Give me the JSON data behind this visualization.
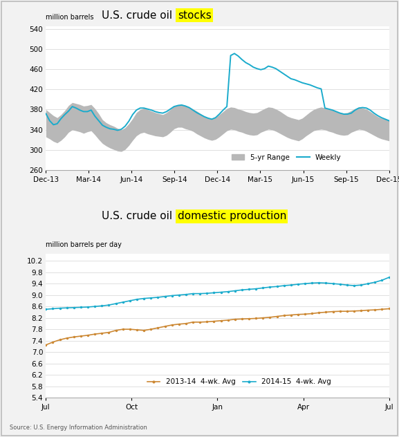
{
  "chart1": {
    "title_prefix": "U.S. crude oil ",
    "title_highlight": "stocks",
    "ylabel": "million barrels",
    "ylim": [
      260,
      545
    ],
    "yticks": [
      260,
      300,
      340,
      380,
      420,
      460,
      500,
      540
    ],
    "xtick_labels": [
      "Dec-13",
      "Mar-14",
      "Jun-14",
      "Sep-14",
      "Dec-14",
      "Mar-15",
      "Jun-15",
      "Sep-15",
      "Dec-15"
    ],
    "band_color": "#b8b8b8",
    "line_color": "#1aabcc",
    "legend_band": "5-yr Range",
    "legend_line": "Weekly",
    "band_upper": [
      380,
      374,
      368,
      364,
      370,
      378,
      388,
      394,
      392,
      390,
      387,
      388,
      390,
      382,
      372,
      360,
      354,
      350,
      347,
      343,
      340,
      344,
      352,
      362,
      374,
      380,
      383,
      380,
      377,
      374,
      372,
      370,
      374,
      380,
      387,
      390,
      390,
      388,
      385,
      381,
      377,
      372,
      367,
      364,
      362,
      364,
      370,
      376,
      382,
      385,
      384,
      381,
      379,
      376,
      374,
      373,
      374,
      378,
      382,
      385,
      384,
      381,
      377,
      372,
      367,
      364,
      362,
      360,
      363,
      369,
      375,
      380,
      383,
      385,
      383,
      381,
      379,
      376,
      374,
      373,
      374,
      378,
      382,
      385,
      383,
      381,
      376,
      371,
      366,
      363,
      361,
      359
    ],
    "band_lower": [
      326,
      322,
      317,
      314,
      319,
      326,
      335,
      340,
      338,
      336,
      333,
      336,
      338,
      330,
      321,
      313,
      308,
      304,
      301,
      298,
      297,
      301,
      309,
      319,
      328,
      333,
      335,
      332,
      330,
      328,
      327,
      326,
      329,
      335,
      342,
      345,
      345,
      342,
      340,
      337,
      332,
      328,
      324,
      321,
      319,
      321,
      326,
      332,
      338,
      341,
      340,
      337,
      335,
      332,
      330,
      329,
      330,
      335,
      338,
      341,
      340,
      337,
      333,
      329,
      325,
      322,
      320,
      318,
      322,
      328,
      333,
      338,
      340,
      341,
      340,
      337,
      335,
      332,
      330,
      329,
      330,
      335,
      338,
      341,
      340,
      337,
      333,
      329,
      325,
      322,
      320,
      318
    ],
    "weekly": [
      372,
      358,
      350,
      352,
      362,
      370,
      377,
      386,
      383,
      379,
      376,
      376,
      379,
      367,
      358,
      349,
      345,
      342,
      341,
      339,
      341,
      347,
      357,
      370,
      379,
      383,
      383,
      381,
      379,
      376,
      374,
      373,
      376,
      381,
      386,
      388,
      389,
      387,
      384,
      379,
      374,
      370,
      366,
      363,
      361,
      364,
      371,
      379,
      386,
      487,
      491,
      486,
      479,
      473,
      469,
      464,
      461,
      459,
      461,
      466,
      464,
      461,
      456,
      451,
      446,
      441,
      439,
      436,
      433,
      431,
      429,
      426,
      423,
      421,
      383,
      381,
      379,
      376,
      373,
      371,
      371,
      373,
      379,
      383,
      384,
      383,
      379,
      373,
      368,
      364,
      361,
      358
    ]
  },
  "chart2": {
    "title_prefix": "U.S. crude oil ",
    "title_highlight": "domestic production",
    "ylabel": "million barrels per day",
    "ylim": [
      5.4,
      10.45
    ],
    "yticks": [
      5.4,
      5.8,
      6.2,
      6.6,
      7.0,
      7.4,
      7.8,
      8.2,
      8.6,
      9.0,
      9.4,
      9.8,
      10.2
    ],
    "xtick_labels": [
      "Jul",
      "Oct",
      "Jan",
      "Apr",
      "Jul"
    ],
    "line1_color": "#cc8833",
    "line2_color": "#1aabcc",
    "legend1": "2013-14  4-wk. Avg",
    "legend2": "2014-15  4-wk. Avg",
    "series1": [
      7.25,
      7.35,
      7.43,
      7.49,
      7.53,
      7.56,
      7.59,
      7.63,
      7.66,
      7.69,
      7.76,
      7.8,
      7.8,
      7.78,
      7.76,
      7.8,
      7.85,
      7.9,
      7.95,
      7.98,
      8.0,
      8.05,
      8.05,
      8.06,
      8.08,
      8.1,
      8.12,
      8.15,
      8.16,
      8.17,
      8.18,
      8.2,
      8.22,
      8.25,
      8.28,
      8.3,
      8.32,
      8.33,
      8.35,
      8.38,
      8.4,
      8.42,
      8.43,
      8.43,
      8.44,
      8.45,
      8.47,
      8.48,
      8.5,
      8.52
    ],
    "series2": [
      8.5,
      8.52,
      8.54,
      8.55,
      8.56,
      8.57,
      8.58,
      8.6,
      8.62,
      8.65,
      8.7,
      8.75,
      8.8,
      8.85,
      8.88,
      8.9,
      8.92,
      8.95,
      8.98,
      9.0,
      9.02,
      9.05,
      9.05,
      9.06,
      9.08,
      9.1,
      9.12,
      9.15,
      9.18,
      9.2,
      9.22,
      9.25,
      9.28,
      9.3,
      9.33,
      9.35,
      9.38,
      9.4,
      9.42,
      9.43,
      9.42,
      9.4,
      9.38,
      9.35,
      9.33,
      9.35,
      9.4,
      9.45,
      9.52,
      9.62
    ]
  },
  "source_text": "Source: U.S. Energy Information Administration",
  "highlight_color": "#ffff00",
  "bg_color": "#f2f2f2",
  "plot_bg": "#ffffff",
  "border_color": "#cccccc",
  "grid_color": "#e0e0e0"
}
